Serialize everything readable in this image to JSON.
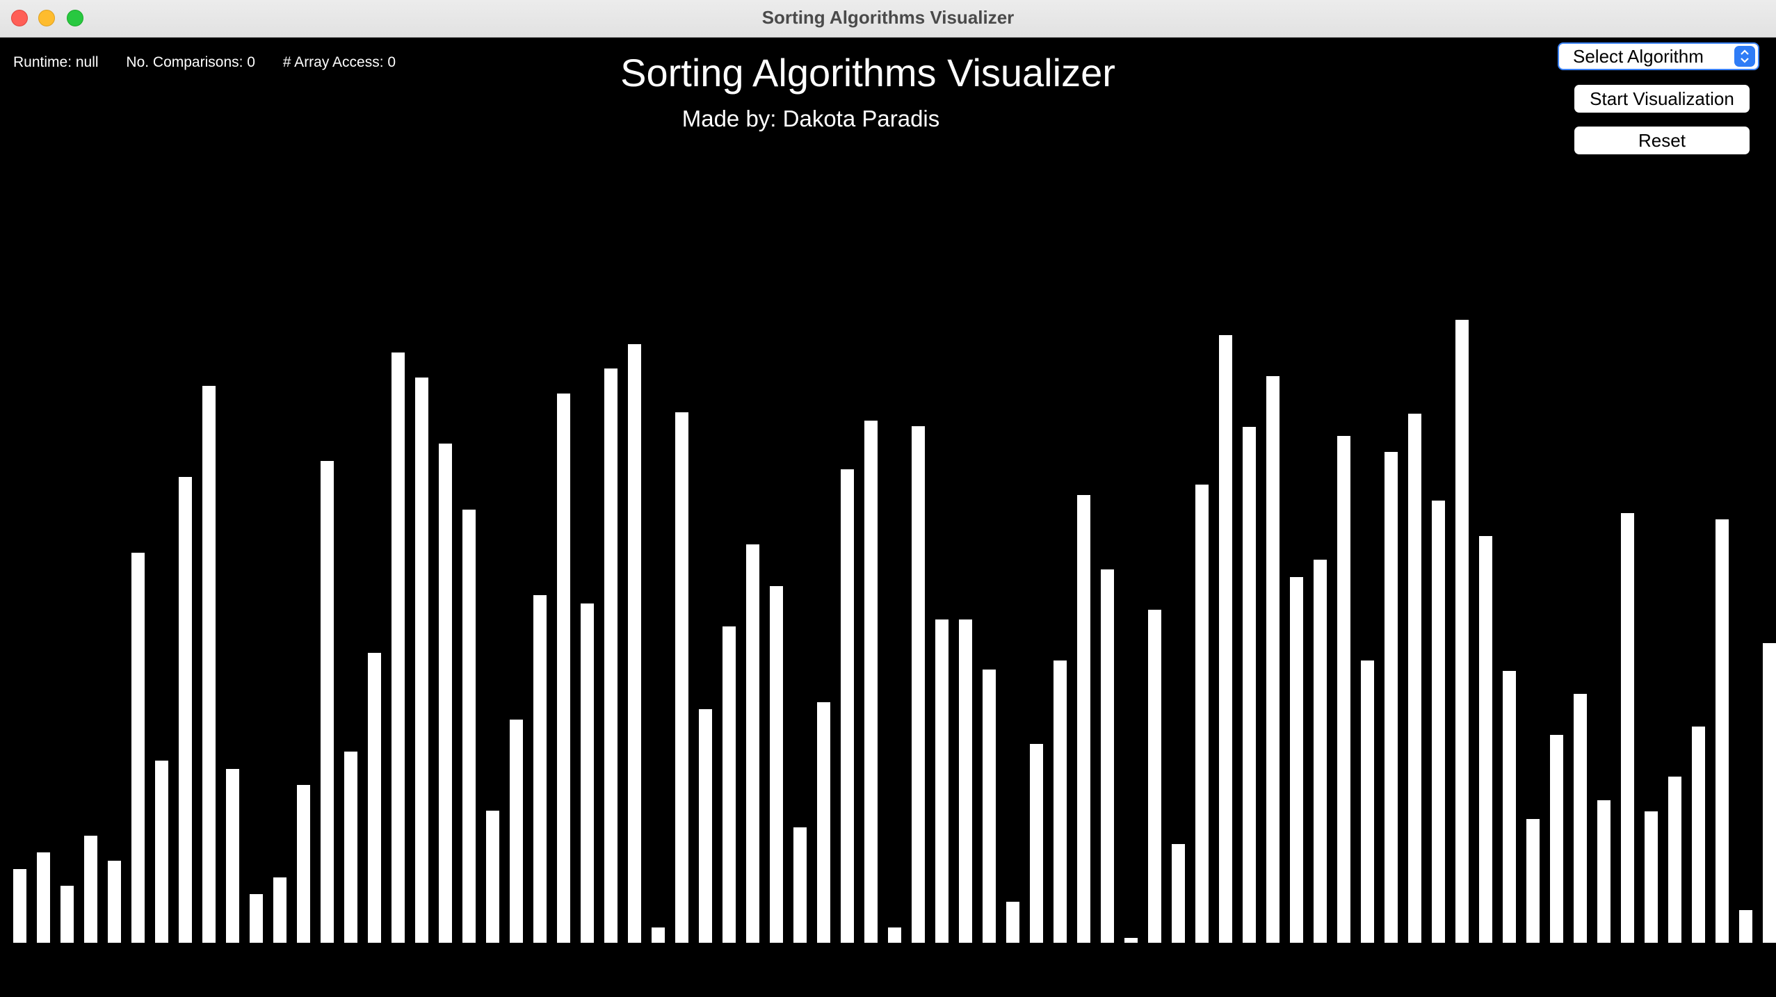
{
  "window": {
    "title": "Sorting Algorithms Visualizer"
  },
  "stats": {
    "runtime": "Runtime: null",
    "comparisons": "No. Comparisons: 0",
    "array_access": "# Array Access: 0"
  },
  "header": {
    "title": "Sorting Algorithms Visualizer",
    "subtitle": "Made by: Dakota Paradis"
  },
  "controls": {
    "select_label": "Select Algorithm",
    "start_label": "Start Visualization",
    "reset_label": "Reset"
  },
  "icons": {
    "select_arrow": "chevron-up-down-icon"
  },
  "colors": {
    "background": "#000000",
    "bar": "#ffffff",
    "accent": "#2f7cf6"
  },
  "bar_values": [
    106,
    130,
    82,
    154,
    118,
    561,
    262,
    670,
    801,
    250,
    70,
    94,
    227,
    693,
    275,
    417,
    849,
    813,
    718,
    623,
    190,
    321,
    500,
    790,
    488,
    826,
    861,
    22,
    763,
    336,
    455,
    573,
    513,
    166,
    346,
    681,
    751,
    22,
    743,
    465,
    465,
    393,
    59,
    286,
    406,
    644,
    537,
    7,
    479,
    142,
    659,
    874,
    742,
    815,
    526,
    551,
    729,
    406,
    706,
    761,
    636,
    896,
    585,
    391,
    178,
    299,
    358,
    205,
    618,
    189,
    239,
    311,
    609,
    47,
    431
  ]
}
